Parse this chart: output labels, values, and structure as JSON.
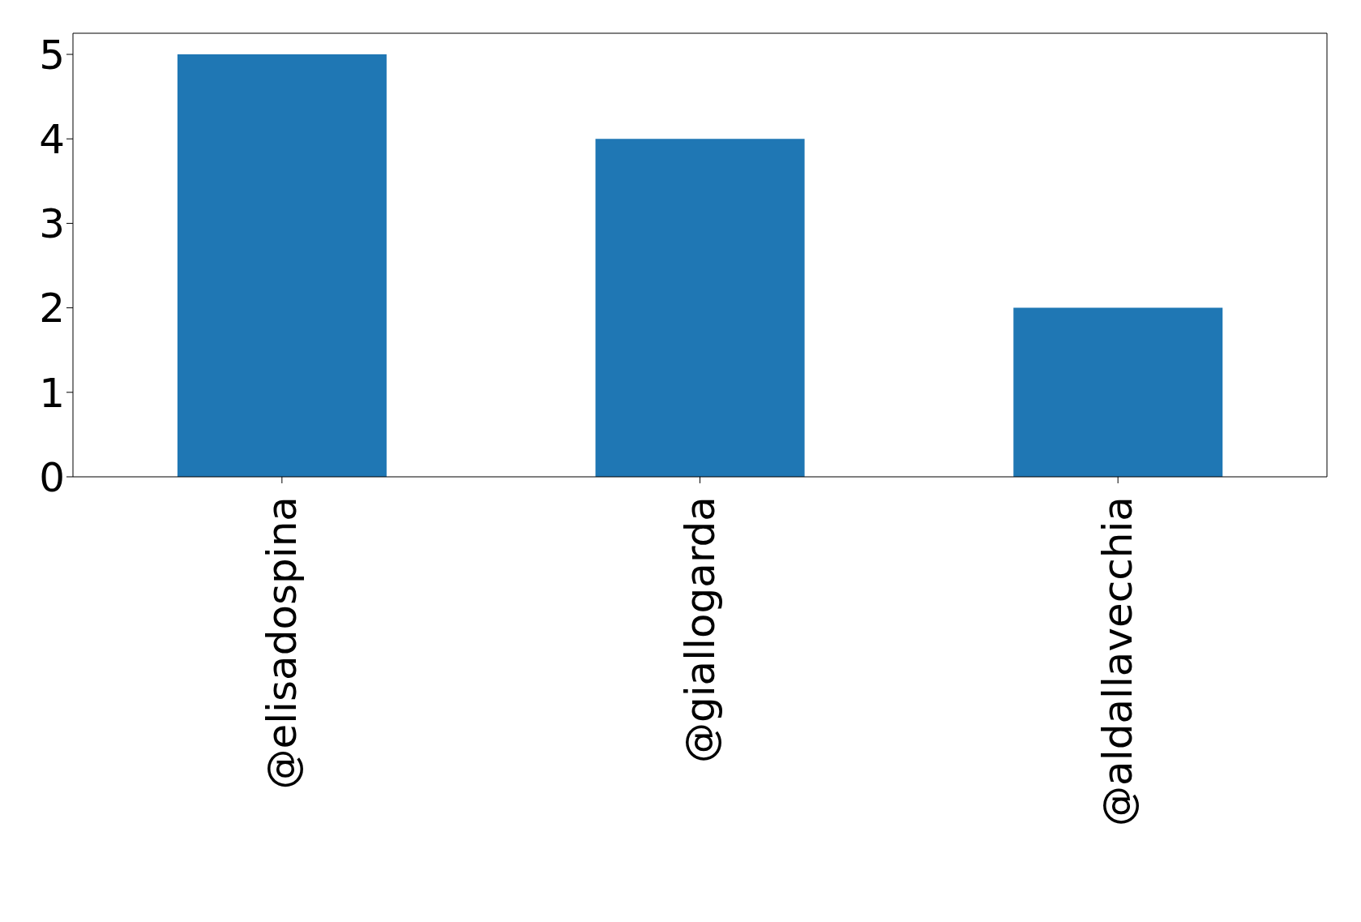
{
  "chart_data": {
    "type": "bar",
    "categories": [
      "@elisadospina",
      "@giallogarda",
      "@aldallavecchia"
    ],
    "values": [
      5,
      4,
      2
    ],
    "color": "#1f77b4",
    "ylim": [
      0,
      5.25
    ],
    "yticks": [
      0,
      1,
      2,
      3,
      4,
      5
    ],
    "grid": false
  }
}
